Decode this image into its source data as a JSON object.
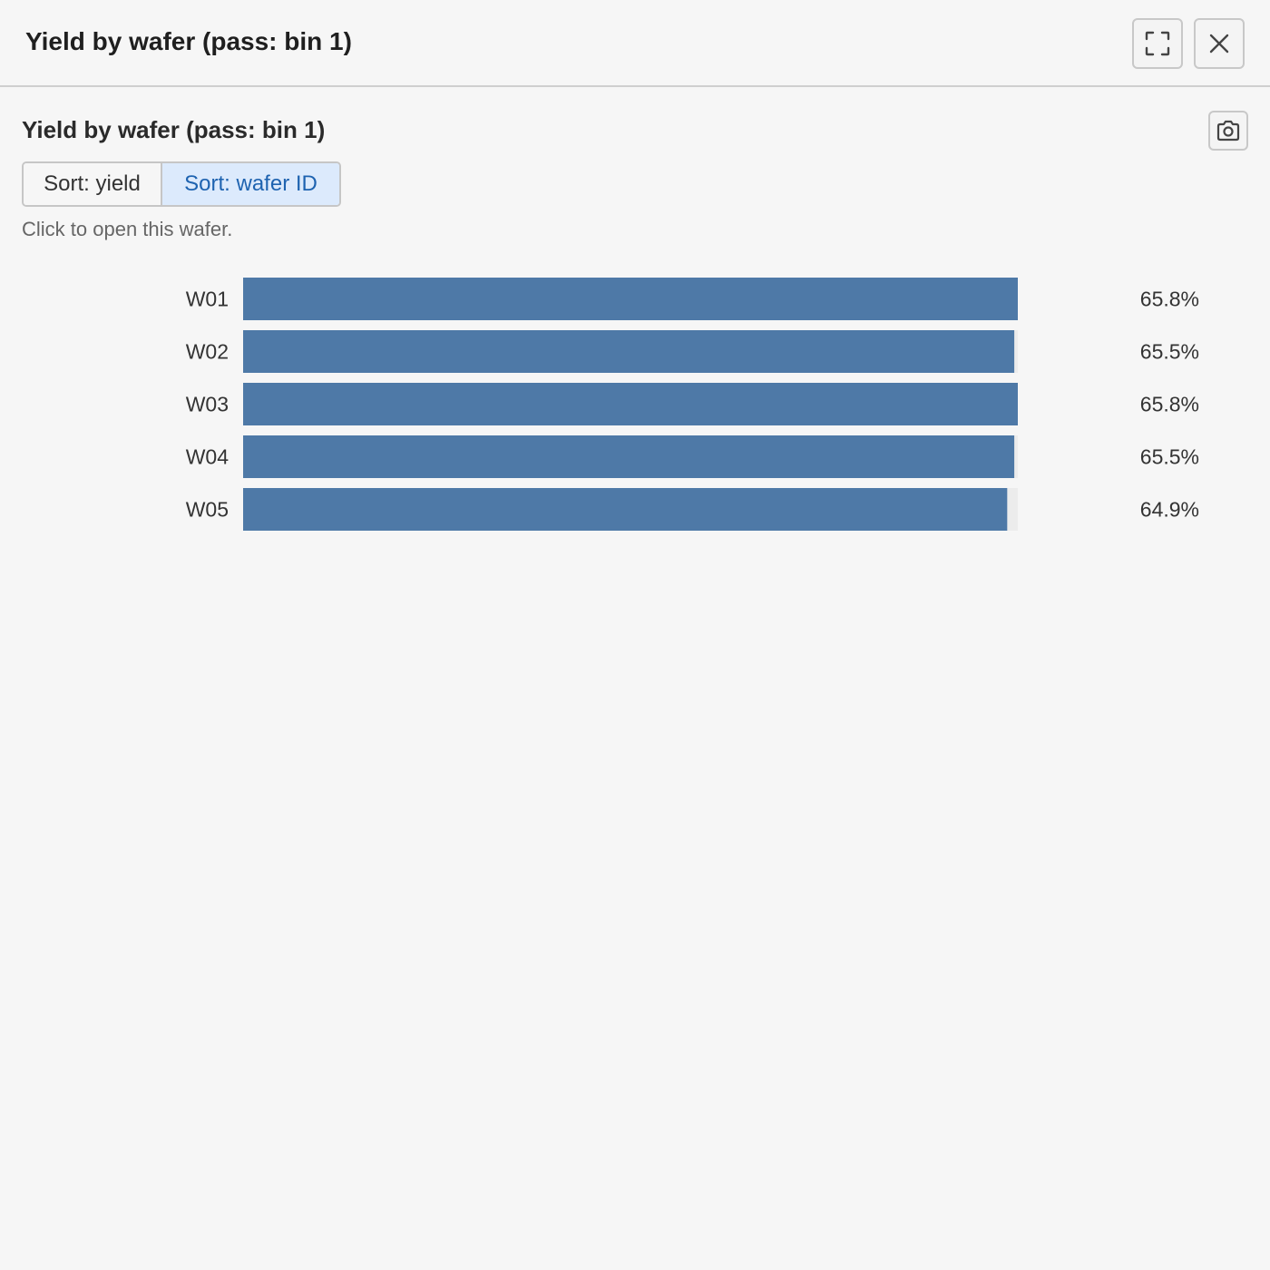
{
  "window": {
    "title": "Yield by wafer (pass: bin 1)",
    "fullscreen_icon": "fullscreen-icon",
    "close_icon": "close-icon"
  },
  "panel": {
    "title": "Yield by wafer (pass: bin 1)",
    "camera_icon": "camera-icon",
    "sort_buttons": [
      {
        "label": "Sort: yield",
        "active": false
      },
      {
        "label": "Sort: wafer ID",
        "active": true
      }
    ],
    "hint": "Click to open this wafer."
  },
  "colors": {
    "bar": "#4e79a7",
    "active_sort_bg": "#dceafc",
    "active_sort_text": "#1e63b0"
  },
  "chart_data": {
    "type": "bar",
    "orientation": "horizontal",
    "categories": [
      "W01",
      "W02",
      "W03",
      "W04",
      "W05"
    ],
    "values": [
      65.8,
      65.5,
      65.8,
      65.5,
      64.9
    ],
    "value_labels": [
      "65.8%",
      "65.5%",
      "65.8%",
      "65.5%",
      "64.9%"
    ],
    "xlim": [
      0,
      65.8
    ],
    "grid": false,
    "legend": "none"
  }
}
